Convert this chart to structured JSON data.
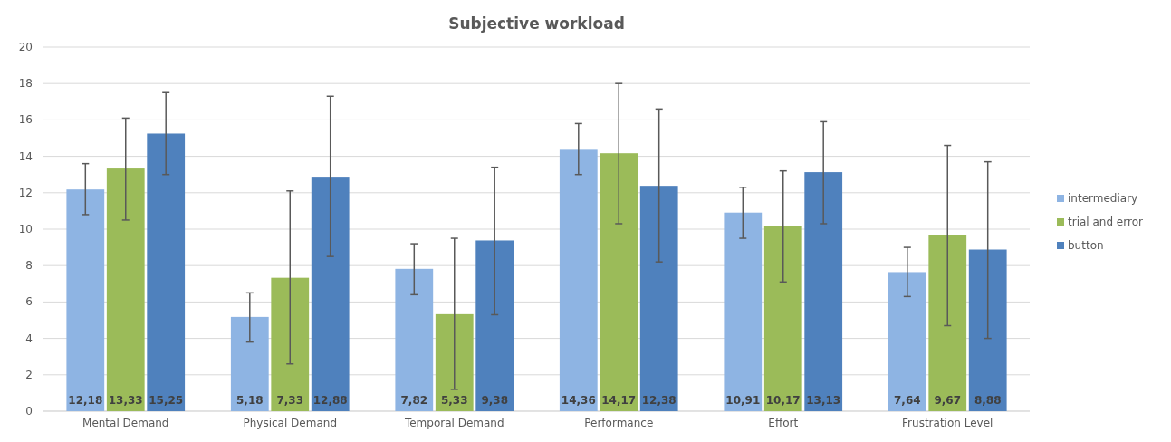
{
  "chart_data": {
    "type": "bar",
    "title": "Subjective workload",
    "categories": [
      "Mental Demand",
      "Physical Demand",
      "Temporal Demand",
      "Performance",
      "Effort",
      "Frustration Level"
    ],
    "series": [
      {
        "name": "intermediary",
        "color": "#8eb4e3",
        "values": [
          12.18,
          5.18,
          7.82,
          14.36,
          10.91,
          7.64
        ],
        "value_labels": [
          "12,18",
          "5,18",
          "7,82",
          "14,36",
          "10,91",
          "7,64"
        ],
        "errors": [
          [
            10.8,
            13.6
          ],
          [
            3.8,
            6.5
          ],
          [
            6.4,
            9.2
          ],
          [
            13.0,
            15.8
          ],
          [
            9.5,
            12.3
          ],
          [
            6.3,
            9.0
          ]
        ]
      },
      {
        "name": "trial and error",
        "color": "#9bbb59",
        "values": [
          13.33,
          7.33,
          5.33,
          14.17,
          10.17,
          9.67
        ],
        "value_labels": [
          "13,33",
          "7,33",
          "5,33",
          "14,17",
          "10,17",
          "9,67"
        ],
        "errors": [
          [
            10.5,
            16.1
          ],
          [
            2.6,
            12.1
          ],
          [
            1.2,
            9.5
          ],
          [
            10.3,
            18.0
          ],
          [
            7.1,
            13.2
          ],
          [
            4.7,
            14.6
          ]
        ]
      },
      {
        "name": "button",
        "color": "#4f81bd",
        "values": [
          15.25,
          12.88,
          9.38,
          12.38,
          13.13,
          8.88
        ],
        "value_labels": [
          "15,25",
          "12,88",
          "9,38",
          "12,38",
          "13,13",
          "8,88"
        ],
        "errors": [
          [
            13.0,
            17.5
          ],
          [
            8.5,
            17.3
          ],
          [
            5.3,
            13.4
          ],
          [
            8.2,
            16.6
          ],
          [
            10.3,
            15.9
          ],
          [
            4.0,
            13.7
          ]
        ]
      }
    ],
    "ylim": [
      0,
      20
    ],
    "yticks": [
      0,
      2,
      4,
      6,
      8,
      10,
      12,
      14,
      16,
      18,
      20
    ],
    "grid": "y",
    "legend": "right"
  }
}
